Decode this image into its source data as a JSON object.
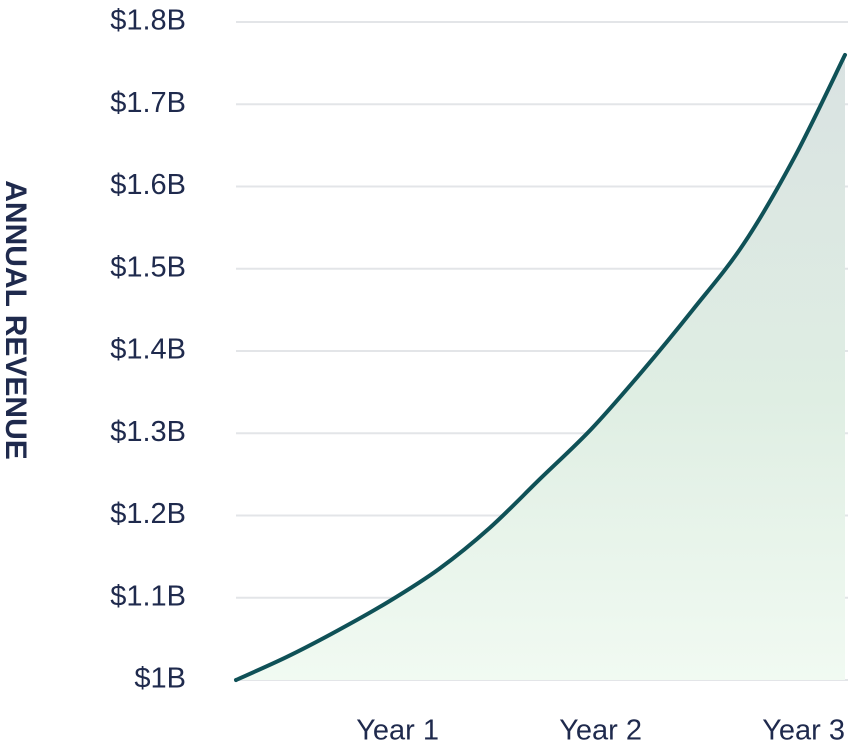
{
  "chart_data": {
    "type": "area",
    "y_label": "ANNUAL REVENUE",
    "x": [
      0,
      0.25,
      0.5,
      0.75,
      1,
      1.25,
      1.5,
      1.75,
      2,
      2.25,
      2.5,
      2.75,
      3
    ],
    "values": [
      1.0,
      1.028,
      1.06,
      1.095,
      1.135,
      1.185,
      1.245,
      1.305,
      1.375,
      1.45,
      1.53,
      1.635,
      1.76
    ],
    "color": "#0f5157",
    "xlim": [
      0,
      3
    ],
    "xticks": [
      {
        "value": 1,
        "label": "Year 1"
      },
      {
        "value": 2,
        "label": "Year 2"
      },
      {
        "value": 3,
        "label": "Year 3"
      }
    ],
    "ylim": [
      1.0,
      1.8
    ],
    "yticks": [
      {
        "value": 1.0,
        "label": "$1B"
      },
      {
        "value": 1.1,
        "label": "$1.1B"
      },
      {
        "value": 1.2,
        "label": "$1.2B"
      },
      {
        "value": 1.3,
        "label": "$1.3B"
      },
      {
        "value": 1.4,
        "label": "$1.4B"
      },
      {
        "value": 1.5,
        "label": "$1.5B"
      },
      {
        "value": 1.6,
        "label": "$1.6B"
      },
      {
        "value": 1.7,
        "label": "$1.7B"
      },
      {
        "value": 1.8,
        "label": "$1.8B"
      }
    ],
    "grid": true
  }
}
